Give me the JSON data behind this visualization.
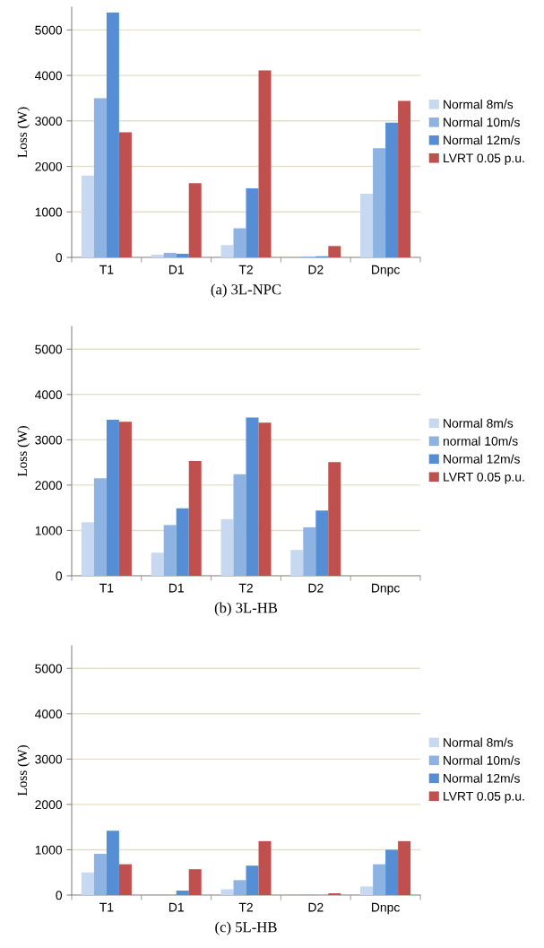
{
  "chart_data": [
    {
      "type": "bar",
      "xlabel": "(a) 3L-NPC",
      "ylabel": "Loss (W)",
      "categories": [
        "T1",
        "D1",
        "T2",
        "D2",
        "Dnpc"
      ],
      "ylim": [
        0,
        5500
      ],
      "yticks": [
        0,
        1000,
        2000,
        3000,
        4000,
        5000
      ],
      "grid": "y",
      "legend": "right",
      "series": [
        {
          "name": "Normal 8m/s",
          "color": "#c6d9f1",
          "values": [
            1800,
            60,
            270,
            0,
            1400
          ]
        },
        {
          "name": "Normal 10m/s",
          "color": "#8db3e2",
          "values": [
            3500,
            100,
            640,
            20,
            2400
          ]
        },
        {
          "name": "Normal 12m/s",
          "color": "#558ed5",
          "values": [
            5380,
            80,
            1520,
            25,
            2960
          ]
        },
        {
          "name": "LVRT 0.05 p.u.",
          "color": "#c0504d",
          "values": [
            2750,
            1630,
            4110,
            250,
            3440
          ]
        }
      ]
    },
    {
      "type": "bar",
      "xlabel": "(b) 3L-HB",
      "ylabel": "Loss (W)",
      "categories": [
        "T1",
        "D1",
        "T2",
        "D2",
        "Dnpc"
      ],
      "ylim": [
        0,
        5500
      ],
      "yticks": [
        0,
        1000,
        2000,
        3000,
        4000,
        5000
      ],
      "grid": "y",
      "legend": "right",
      "series": [
        {
          "name": "Normal 8m/s",
          "color": "#c6d9f1",
          "values": [
            1180,
            510,
            1250,
            570,
            0
          ]
        },
        {
          "name": "normal 10m/s",
          "color": "#8db3e2",
          "values": [
            2150,
            1120,
            2240,
            1070,
            0
          ]
        },
        {
          "name": "Normal 12m/s",
          "color": "#558ed5",
          "values": [
            3440,
            1490,
            3490,
            1440,
            0
          ]
        },
        {
          "name": "LVRT 0.05 p.u.",
          "color": "#c0504d",
          "values": [
            3400,
            2530,
            3380,
            2510,
            0
          ]
        }
      ]
    },
    {
      "type": "bar",
      "xlabel": "(c) 5L-HB",
      "ylabel": "Loss (W)",
      "categories": [
        "T1",
        "D1",
        "T2",
        "D2",
        "Dnpc"
      ],
      "ylim": [
        0,
        5500
      ],
      "yticks": [
        0,
        1000,
        2000,
        3000,
        4000,
        5000
      ],
      "grid": "y",
      "legend": "right",
      "series": [
        {
          "name": "Normal 8m/s",
          "color": "#c6d9f1",
          "values": [
            500,
            0,
            130,
            0,
            190
          ]
        },
        {
          "name": "Normal 10m/s",
          "color": "#8db3e2",
          "values": [
            910,
            0,
            330,
            10,
            680
          ]
        },
        {
          "name": "Normal 12m/s",
          "color": "#558ed5",
          "values": [
            1420,
            100,
            650,
            0,
            1000
          ]
        },
        {
          "name": "LVRT 0.05 p.u.",
          "color": "#c0504d",
          "values": [
            680,
            570,
            1190,
            40,
            1190
          ]
        }
      ]
    }
  ]
}
